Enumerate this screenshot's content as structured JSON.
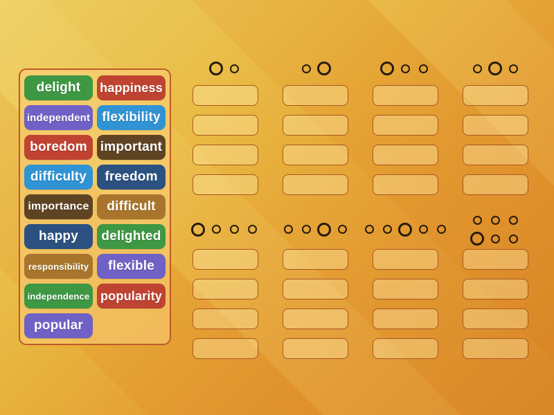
{
  "activity": {
    "type": "group-sort",
    "description_visible": false
  },
  "palette": {
    "green": "#3e9743",
    "red": "#c04331",
    "purple": "#6f61c5",
    "blue": "#2f93d4",
    "navy": "#2b5180",
    "dark_brown": "#5e4423",
    "golden_brown": "#a9752c",
    "background_top_left": "#e9c650",
    "background_bottom_right": "#e08e2a",
    "panel_border": "#bf5b28",
    "slot_border": "#a8571f",
    "circle_color": "#261b0d",
    "tile_text": "#ffffff"
  },
  "word_bank": {
    "tiles": [
      {
        "label": "delight",
        "color": "green"
      },
      {
        "label": "happiness",
        "color": "red"
      },
      {
        "label": "independent",
        "color": "purple"
      },
      {
        "label": "flexibility",
        "color": "blue"
      },
      {
        "label": "boredom",
        "color": "red"
      },
      {
        "label": "important",
        "color": "dark_brown"
      },
      {
        "label": "difficulty",
        "color": "blue"
      },
      {
        "label": "freedom",
        "color": "navy"
      },
      {
        "label": "importance",
        "color": "dark_brown"
      },
      {
        "label": "difficult",
        "color": "golden_brown"
      },
      {
        "label": "happy",
        "color": "navy"
      },
      {
        "label": "delighted",
        "color": "green"
      },
      {
        "label": "responsibility",
        "color": "golden_brown"
      },
      {
        "label": "flexible",
        "color": "purple"
      },
      {
        "label": "independence",
        "color": "green"
      },
      {
        "label": "popularity",
        "color": "red"
      },
      {
        "label": "popular",
        "color": "purple"
      }
    ]
  },
  "groups": [
    {
      "label": "O o",
      "pattern": [
        [
          "O",
          "o"
        ]
      ],
      "slots": 4
    },
    {
      "label": "o O",
      "pattern": [
        [
          "o",
          "O"
        ]
      ],
      "slots": 4
    },
    {
      "label": "O o o",
      "pattern": [
        [
          "O",
          "o",
          "o"
        ]
      ],
      "slots": 4
    },
    {
      "label": "o O o",
      "pattern": [
        [
          "o",
          "O",
          "o"
        ]
      ],
      "slots": 4
    },
    {
      "label": "O o o o",
      "pattern": [
        [
          "O",
          "o",
          "o",
          "o"
        ]
      ],
      "slots": 4
    },
    {
      "label": "o o O o",
      "pattern": [
        [
          "o",
          "o",
          "O",
          "o"
        ]
      ],
      "slots": 4
    },
    {
      "label": "o o O o o",
      "pattern": [
        [
          "o",
          "o",
          "O",
          "o",
          "o"
        ]
      ],
      "slots": 4
    },
    {
      "label": "o o o / O o o",
      "pattern": [
        [
          "o",
          "o",
          "o"
        ],
        [
          "O",
          "o",
          "o"
        ]
      ],
      "slots": 4
    }
  ]
}
